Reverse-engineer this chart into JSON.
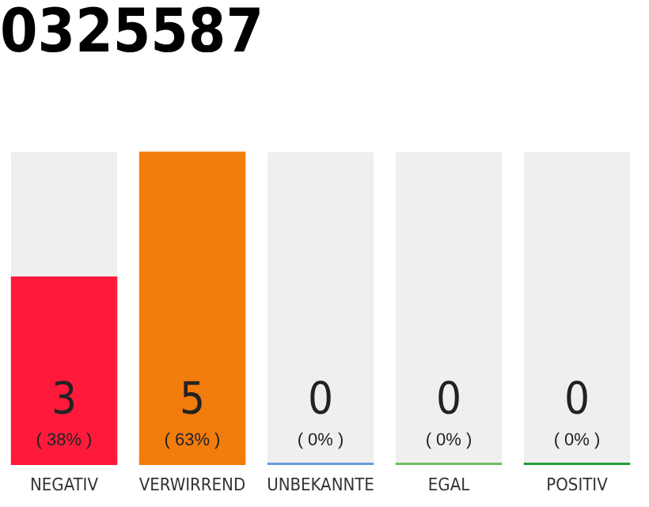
{
  "chart_data": {
    "type": "bar",
    "title": "0325587",
    "categories": [
      "NEGATIV",
      "VERWIRREND",
      "UNBEKANNTE",
      "EGAL",
      "POSITIV"
    ],
    "values": [
      3,
      5,
      0,
      0,
      0
    ],
    "value_labels": [
      "3\n( 38% )",
      "5\n( 63% )",
      "0\n( 0% )",
      "0\n( 0% )",
      "0\n( 0% )"
    ],
    "colors": [
      "#ff1a3c",
      "#f27c0c",
      "#6a9be0",
      "#70c060",
      "#20a040"
    ],
    "tick_labels": "x",
    "grid": false,
    "legend": false
  }
}
